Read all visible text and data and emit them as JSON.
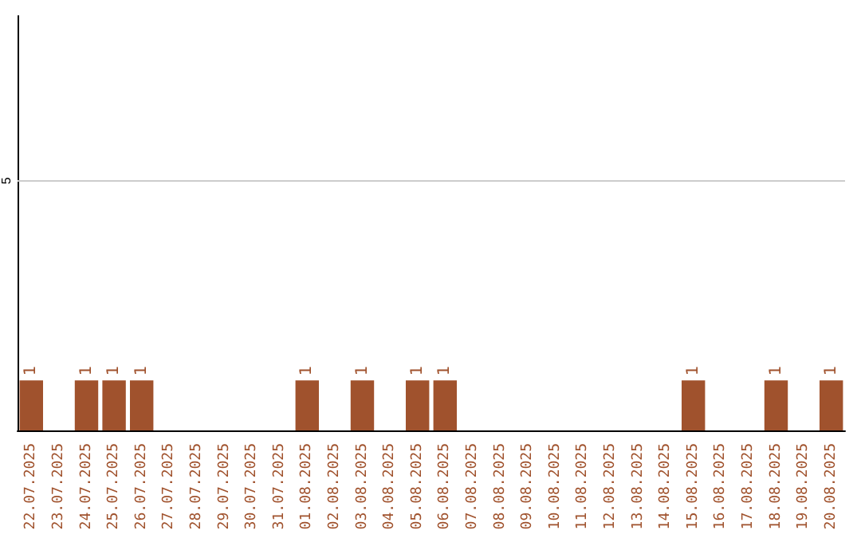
{
  "chart_data": {
    "type": "bar",
    "categories": [
      "22.07.2025",
      "23.07.2025",
      "24.07.2025",
      "25.07.2025",
      "26.07.2025",
      "27.07.2025",
      "28.07.2025",
      "29.07.2025",
      "30.07.2025",
      "31.07.2025",
      "01.08.2025",
      "02.08.2025",
      "03.08.2025",
      "04.08.2025",
      "05.08.2025",
      "06.08.2025",
      "07.08.2025",
      "08.08.2025",
      "09.08.2025",
      "10.08.2025",
      "11.08.2025",
      "12.08.2025",
      "13.08.2025",
      "14.08.2025",
      "15.08.2025",
      "16.08.2025",
      "17.08.2025",
      "18.08.2025",
      "19.08.2025",
      "20.08.2025"
    ],
    "values": [
      1,
      0,
      1,
      1,
      1,
      0,
      0,
      0,
      0,
      0,
      1,
      0,
      1,
      0,
      1,
      1,
      0,
      0,
      0,
      0,
      0,
      0,
      0,
      0,
      1,
      0,
      0,
      1,
      0,
      1
    ],
    "value_labels": [
      "1",
      null,
      "1",
      "1",
      "1",
      null,
      null,
      null,
      null,
      null,
      "1",
      null,
      "1",
      null,
      "1",
      "1",
      null,
      null,
      null,
      null,
      null,
      null,
      null,
      null,
      "1",
      null,
      null,
      "1",
      null,
      "1"
    ],
    "color": "#a0522d",
    "ylim": [
      0,
      8.3
    ],
    "yticks": [
      5
    ],
    "grid": "y"
  }
}
